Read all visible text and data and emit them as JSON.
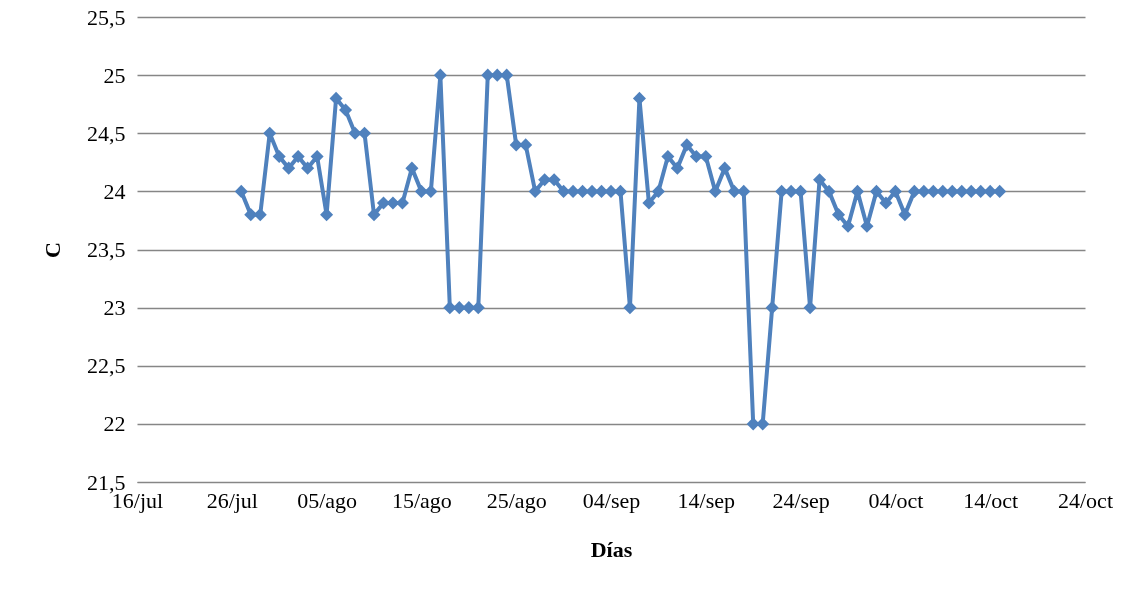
{
  "chart_data": {
    "type": "line",
    "xlabel": "Días",
    "ylabel": "C",
    "x": [
      "--07-27",
      "--07-28",
      "--07-29",
      "--07-30",
      "--07-31",
      "--08-01",
      "--08-02",
      "--08-03",
      "--08-04",
      "--08-05",
      "--08-06",
      "--08-07",
      "--08-08",
      "--08-09",
      "--08-10",
      "--08-11",
      "--08-12",
      "--08-13",
      "--08-14",
      "--08-15",
      "--08-16",
      "--08-17",
      "--08-18",
      "--08-19",
      "--08-20",
      "--08-21",
      "--08-22",
      "--08-23",
      "--08-24",
      "--08-25",
      "--08-26",
      "--08-27",
      "--08-28",
      "--08-29",
      "--08-30",
      "--08-31",
      "--09-01",
      "--09-02",
      "--09-03",
      "--09-04",
      "--09-05",
      "--09-06",
      "--09-07",
      "--09-08",
      "--09-09",
      "--09-10",
      "--09-11",
      "--09-12",
      "--09-13",
      "--09-14",
      "--09-15",
      "--09-16",
      "--09-17",
      "--09-18",
      "--09-19",
      "--09-20",
      "--09-21",
      "--09-22",
      "--09-23",
      "--09-24",
      "--09-25",
      "--09-26",
      "--09-27",
      "--09-28",
      "--09-29",
      "--09-30",
      "--10-01",
      "--10-02",
      "--10-03",
      "--10-04",
      "--10-05",
      "--10-06",
      "--10-07",
      "--10-08",
      "--10-09",
      "--10-10",
      "--10-11",
      "--10-12",
      "--10-13",
      "--10-14",
      "--10-15"
    ],
    "series": [
      {
        "color": "#4f81bd",
        "values": [
          24.0,
          23.8,
          23.8,
          24.5,
          24.3,
          24.2,
          24.3,
          24.2,
          24.3,
          23.8,
          24.8,
          24.7,
          24.5,
          24.5,
          23.8,
          23.9,
          23.9,
          23.9,
          24.2,
          24.0,
          24.0,
          25.0,
          23,
          23,
          23,
          23,
          25,
          25,
          25,
          24.4,
          24.4,
          24.0,
          24.1,
          24.1,
          24.0,
          24.0,
          24.0,
          24.0,
          24.0,
          24.0,
          24.0,
          23.0,
          24.8,
          23.9,
          24.0,
          24.3,
          24.2,
          24.4,
          24.3,
          24.3,
          24.0,
          24.2,
          24.0,
          24.0,
          22,
          22,
          23,
          24,
          24,
          24,
          23,
          24.1,
          24.0,
          23.8,
          23.7,
          24.0,
          23.7,
          24.0,
          23.9,
          24.0,
          23.8,
          24.0,
          24.0,
          24.0,
          24.0,
          24.0,
          24.0,
          24.0,
          24.0,
          24.0,
          24.0
        ]
      }
    ],
    "xlim": [
      "--07-16",
      "--10-24"
    ],
    "xticks": [
      {
        "value": "--07-16",
        "label": "16/jul"
      },
      {
        "value": "--07-26",
        "label": "26/jul"
      },
      {
        "value": "--08-05",
        "label": "05/ago"
      },
      {
        "value": "--08-15",
        "label": "15/ago"
      },
      {
        "value": "--08-25",
        "label": "25/ago"
      },
      {
        "value": "--09-04",
        "label": "04/sep"
      },
      {
        "value": "--09-14",
        "label": "14/sep"
      },
      {
        "value": "--09-24",
        "label": "24/sep"
      },
      {
        "value": "--10-04",
        "label": "04/oct"
      },
      {
        "value": "--10-14",
        "label": "14/oct"
      },
      {
        "value": "--10-24",
        "label": "24/oct"
      }
    ],
    "ylim": [
      21.5,
      25.5
    ],
    "yticks": [
      {
        "value": 21.5,
        "label": "21,5"
      },
      22,
      {
        "value": 22.5,
        "label": "22,5"
      },
      23,
      {
        "value": 23.5,
        "label": "23,5"
      },
      24,
      {
        "value": 24.5,
        "label": "24,5"
      },
      25,
      {
        "value": 25.5,
        "label": "25,5"
      }
    ],
    "grid": "y",
    "marker": "diamond",
    "line_style": "solid"
  }
}
